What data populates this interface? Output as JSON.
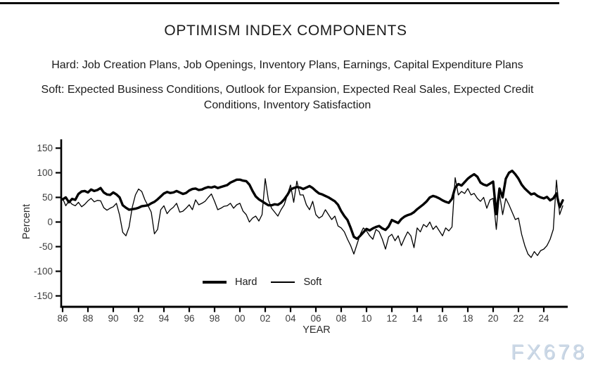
{
  "page": {
    "title": "OPTIMISM INDEX COMPONENTS",
    "hard_definition": "Hard: Job Creation Plans, Job Openings, Inventory Plans, Earnings, Capital Expenditure Plans",
    "soft_definition": "Soft: Expected Business Conditions, Outlook for Expansion, Expected Real Sales, Expected Credit Conditions, Inventory Satisfaction",
    "watermark": "FX678"
  },
  "chart_data": {
    "type": "line",
    "title": "OPTIMISM INDEX COMPONENTS",
    "xlabel": "YEAR",
    "ylabel": "Percent",
    "ylim": [
      -175,
      175
    ],
    "yticks": [
      150,
      100,
      50,
      0,
      -50,
      -100,
      -150
    ],
    "xtick_years": [
      1986,
      1988,
      1990,
      1992,
      1994,
      1996,
      1998,
      2000,
      2002,
      2004,
      2006,
      2008,
      2010,
      2012,
      2014,
      2016,
      2018,
      2020,
      2022,
      2024
    ],
    "xtick_labels": [
      "86",
      "88",
      "90",
      "92",
      "94",
      "96",
      "98",
      "00",
      "02",
      "04",
      "06",
      "08",
      "10",
      "12",
      "14",
      "16",
      "18",
      "20",
      "22",
      "24"
    ],
    "x_start": 1986.0,
    "x_step": 0.25,
    "x_end": 2025.5,
    "grid": false,
    "legend_position": "inside-bottom-center",
    "line_color": "#000000",
    "series": [
      {
        "name": "Hard",
        "stroke_width": 3.4,
        "values": [
          46,
          50,
          40,
          47,
          45,
          57,
          62,
          63,
          60,
          66,
          63,
          65,
          69,
          60,
          56,
          55,
          60,
          56,
          50,
          34,
          29,
          25,
          26,
          27,
          29,
          32,
          33,
          34,
          38,
          41,
          46,
          52,
          58,
          61,
          59,
          60,
          63,
          60,
          57,
          59,
          64,
          67,
          68,
          65,
          66,
          69,
          71,
          70,
          72,
          69,
          71,
          73,
          75,
          80,
          83,
          86,
          86,
          84,
          83,
          76,
          63,
          52,
          46,
          42,
          38,
          34,
          34,
          36,
          35,
          39,
          46,
          55,
          66,
          69,
          71,
          70,
          67,
          70,
          73,
          69,
          63,
          58,
          56,
          53,
          50,
          46,
          42,
          35,
          22,
          12,
          4,
          -12,
          -30,
          -34,
          -28,
          -21,
          -14,
          -17,
          -13,
          -10,
          -8,
          -13,
          -16,
          -9,
          4,
          1,
          -2,
          6,
          11,
          14,
          16,
          20,
          26,
          31,
          36,
          42,
          50,
          53,
          51,
          48,
          44,
          41,
          39,
          47,
          70,
          77,
          74,
          81,
          88,
          93,
          97,
          92,
          80,
          76,
          74,
          78,
          82,
          16,
          68,
          50,
          88,
          100,
          104,
          97,
          88,
          76,
          68,
          62,
          56,
          58,
          53,
          50,
          48,
          51,
          44,
          48,
          58,
          30,
          44
        ]
      },
      {
        "name": "Soft",
        "stroke_width": 1.3,
        "values": [
          48,
          33,
          43,
          36,
          33,
          40,
          31,
          36,
          43,
          48,
          41,
          44,
          43,
          29,
          24,
          28,
          31,
          38,
          14,
          -21,
          -28,
          -10,
          30,
          55,
          67,
          62,
          45,
          33,
          20,
          -24,
          -15,
          25,
          33,
          17,
          25,
          30,
          38,
          20,
          22,
          28,
          35,
          25,
          45,
          35,
          38,
          42,
          50,
          57,
          42,
          25,
          28,
          32,
          33,
          38,
          28,
          35,
          38,
          22,
          15,
          0,
          8,
          12,
          2,
          15,
          88,
          45,
          28,
          20,
          12,
          25,
          35,
          55,
          75,
          40,
          83,
          55,
          55,
          35,
          25,
          42,
          15,
          8,
          12,
          25,
          15,
          5,
          12,
          -8,
          -12,
          -20,
          -35,
          -48,
          -65,
          -45,
          -25,
          -12,
          -18,
          -28,
          -35,
          -15,
          -20,
          -35,
          -55,
          -30,
          -25,
          -38,
          -28,
          -48,
          -33,
          -20,
          -28,
          -52,
          -12,
          -20,
          -5,
          -10,
          0,
          -15,
          -8,
          -18,
          -28,
          -12,
          -18,
          -10,
          90,
          55,
          62,
          58,
          68,
          55,
          58,
          48,
          42,
          50,
          28,
          45,
          48,
          -15,
          58,
          15,
          48,
          35,
          20,
          5,
          8,
          -25,
          -48,
          -65,
          -72,
          -60,
          -68,
          -58,
          -55,
          -48,
          -35,
          -15,
          85,
          15,
          33
        ]
      }
    ]
  }
}
